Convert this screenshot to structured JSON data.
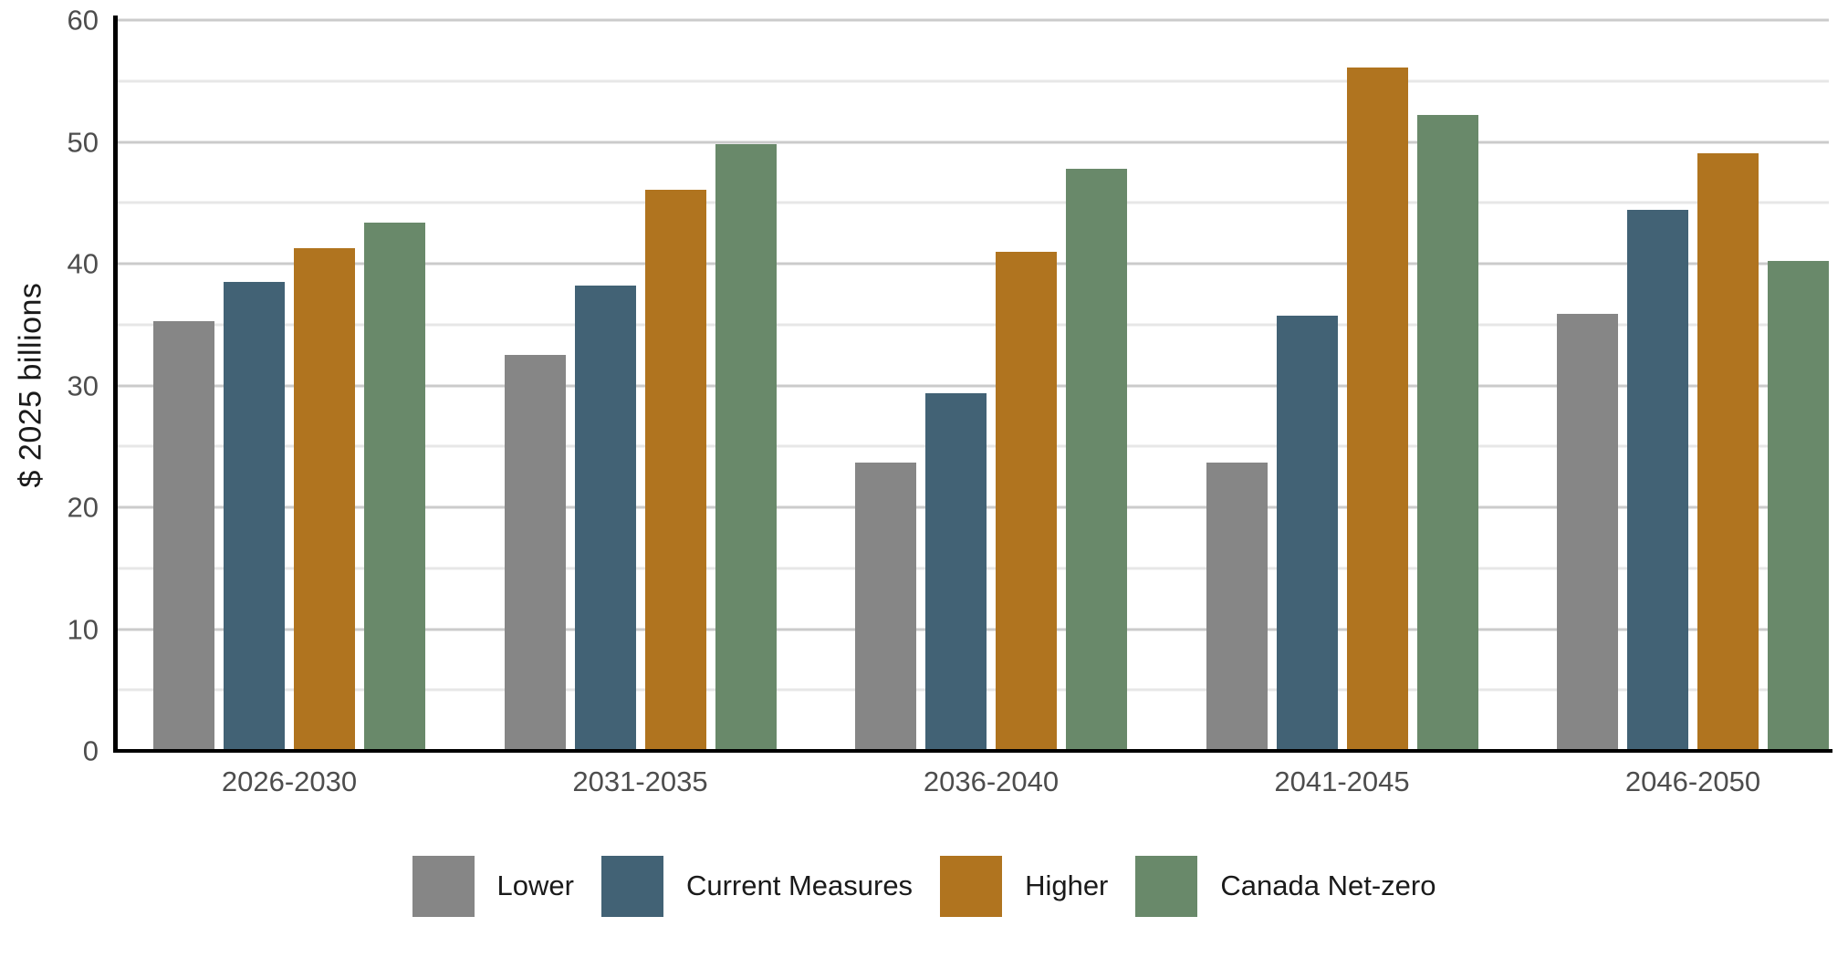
{
  "chart_data": {
    "type": "bar",
    "variant": "grouped",
    "title": "",
    "xlabel": "",
    "ylabel": "$ 2025 billions",
    "categories": [
      "2026-2030",
      "2031-2035",
      "2036-2040",
      "2041-2045",
      "2046-2050"
    ],
    "series": [
      {
        "name": "Lower",
        "color": "#868686",
        "values": [
          35.3,
          32.5,
          23.7,
          23.7,
          35.9
        ]
      },
      {
        "name": "Current Measures",
        "color": "#426275",
        "values": [
          38.5,
          38.2,
          29.4,
          35.7,
          44.4
        ]
      },
      {
        "name": "Higher",
        "color": "#b0741f",
        "values": [
          41.3,
          46.1,
          41.0,
          56.1,
          49.1
        ]
      },
      {
        "name": "Canada Net-zero",
        "color": "#69896a",
        "values": [
          43.4,
          49.8,
          47.8,
          52.2,
          40.2
        ]
      }
    ],
    "ylim": [
      0,
      60
    ],
    "yticks": [
      0,
      10,
      20,
      30,
      40,
      50,
      60
    ],
    "gridlines": {
      "every": 5,
      "major_every": 10,
      "minor_color": "#e7e7e7",
      "major_color": "#cbcbcb"
    },
    "axis_color": "#000000",
    "tick_label_color": "#4d4d4d",
    "legend_position": "bottom"
  }
}
